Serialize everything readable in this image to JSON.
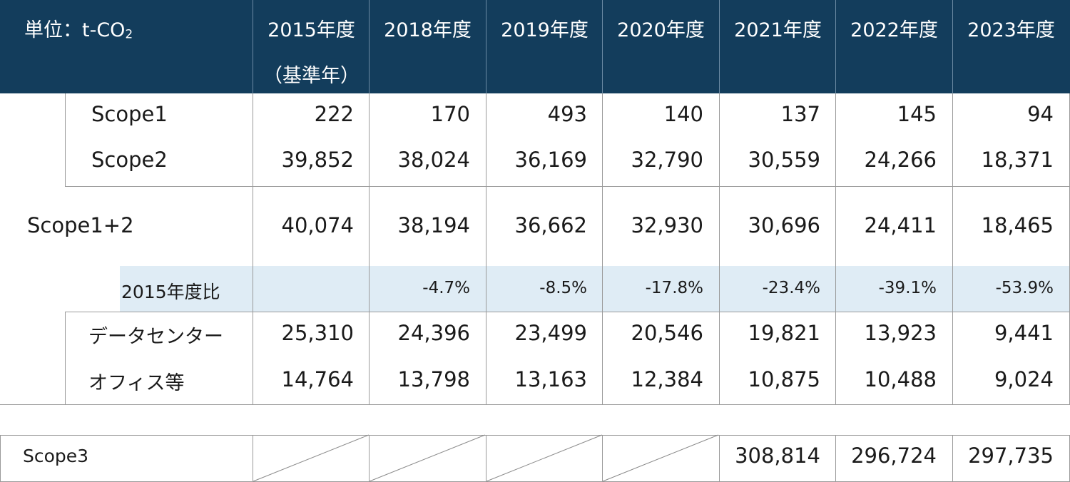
{
  "header": {
    "unit_prefix": "単位：t-CO",
    "unit_subscript": "2",
    "years": [
      "2015年度",
      "2018年度",
      "2019年度",
      "2020年度",
      "2021年度",
      "2022年度",
      "2023年度"
    ],
    "base_year_note": "（基準年）"
  },
  "rows": {
    "scope1": {
      "label": "Scope1",
      "values": [
        "222",
        "170",
        "493",
        "140",
        "137",
        "145",
        "94"
      ]
    },
    "scope2": {
      "label": "Scope2",
      "values": [
        "39,852",
        "38,024",
        "36,169",
        "32,790",
        "30,559",
        "24,266",
        "18,371"
      ]
    },
    "scope12": {
      "label": "Scope1+2",
      "values": [
        "40,074",
        "38,194",
        "36,662",
        "32,930",
        "30,696",
        "24,411",
        "18,465"
      ]
    },
    "ratio": {
      "label": "2015年度比",
      "values": [
        "",
        "-4.7%",
        "-8.5%",
        "-17.8%",
        "-23.4%",
        "-39.1%",
        "-53.9%"
      ]
    },
    "datacenter": {
      "label": "データセンター",
      "values": [
        "25,310",
        "24,396",
        "23,499",
        "20,546",
        "19,821",
        "13,923",
        "9,441"
      ]
    },
    "office": {
      "label": "オフィス等",
      "values": [
        "14,764",
        "13,798",
        "13,163",
        "12,384",
        "10,875",
        "10,488",
        "9,024"
      ]
    }
  },
  "scope3": {
    "label": "Scope3",
    "values": [
      "",
      "",
      "",
      "",
      "308,814",
      "296,724",
      "297,735"
    ]
  }
}
